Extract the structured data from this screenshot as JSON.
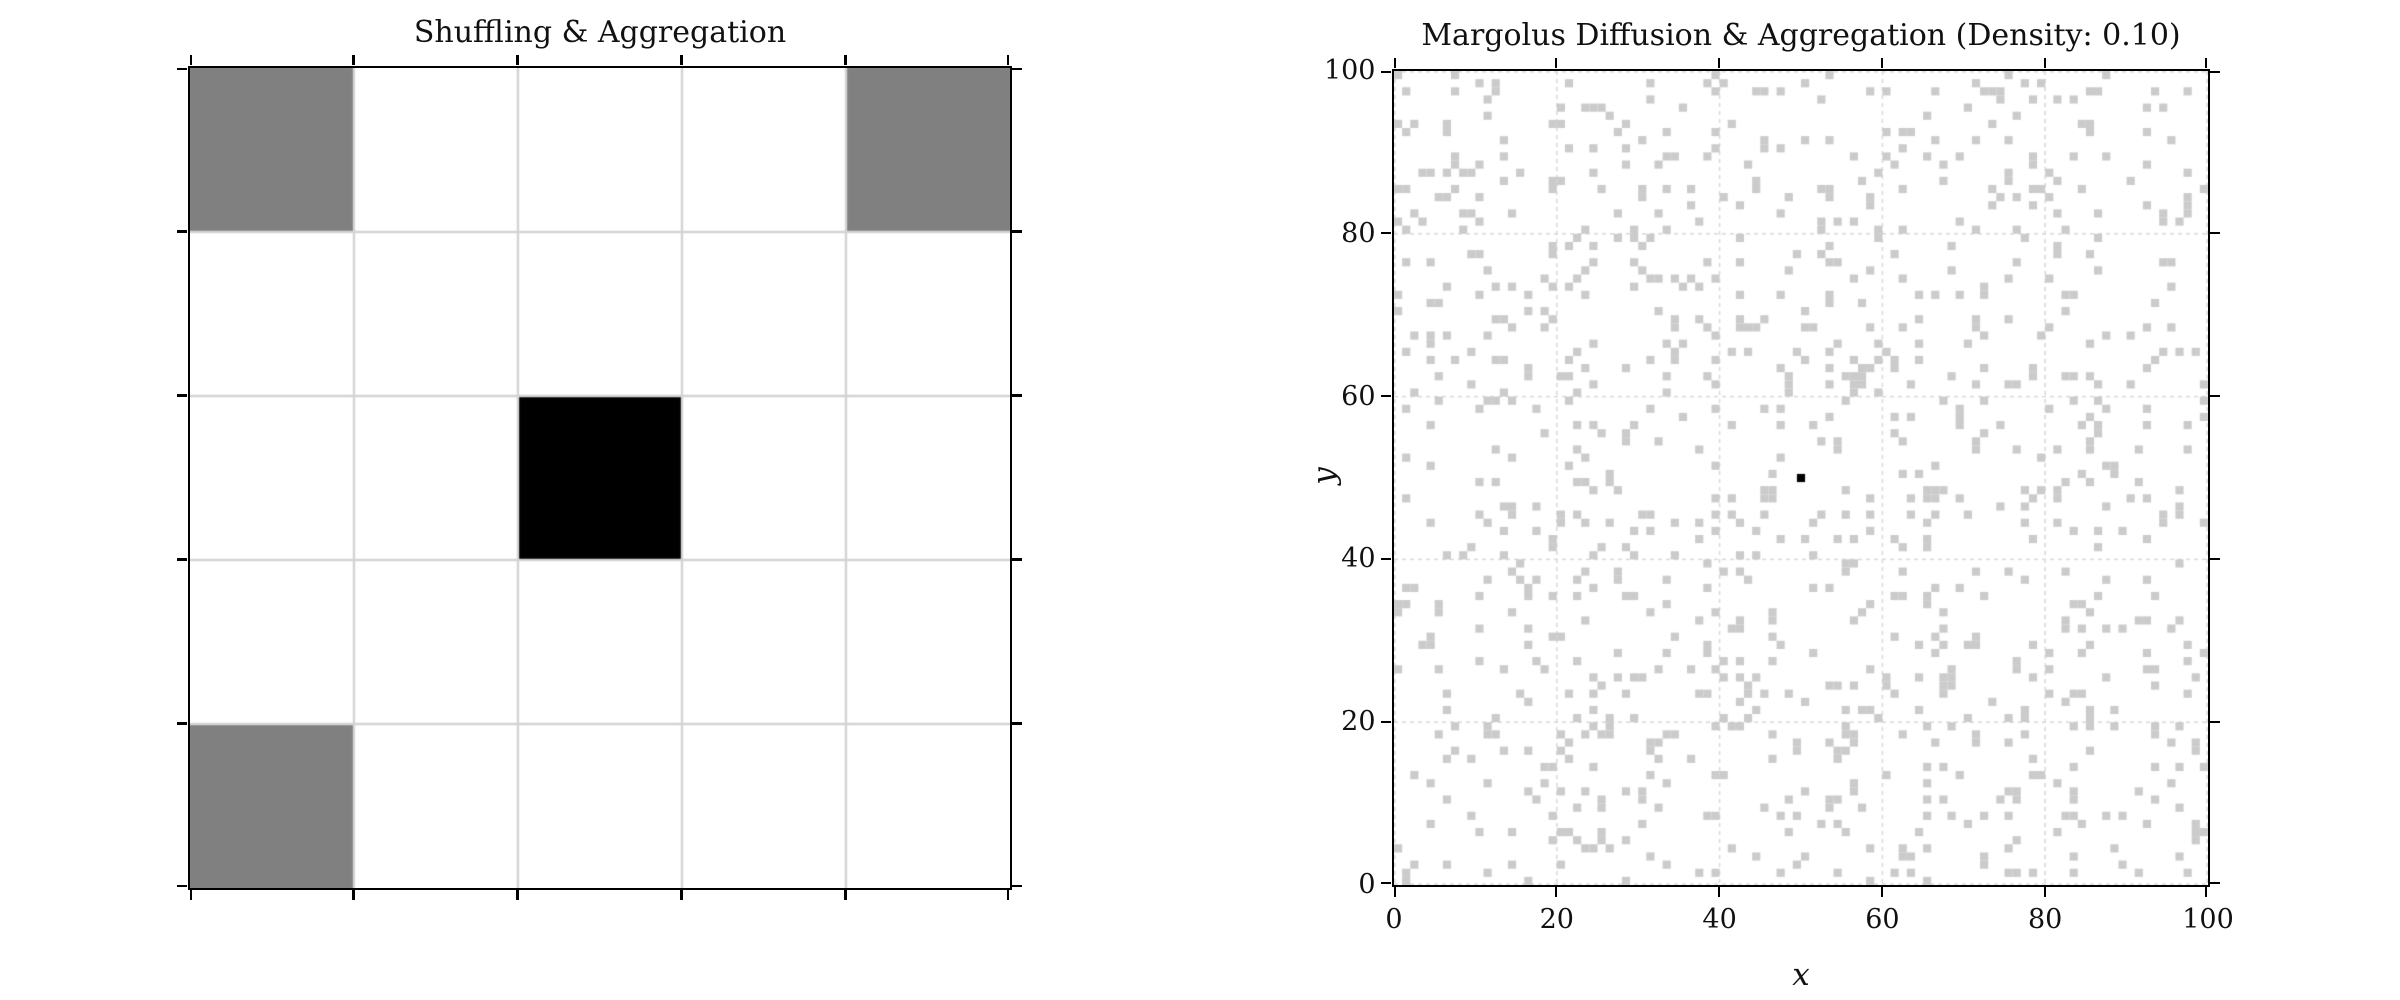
{
  "figure": {
    "background": "#ffffff"
  },
  "chart_data": [
    {
      "type": "heatmap",
      "title": "Shuffling & Aggregation",
      "grid_rows": 5,
      "grid_cols": 5,
      "cells": [
        {
          "row": 0,
          "col": 0,
          "state": "particle"
        },
        {
          "row": 0,
          "col": 4,
          "state": "particle"
        },
        {
          "row": 2,
          "col": 2,
          "state": "aggregate"
        },
        {
          "row": 4,
          "col": 0,
          "state": "particle"
        }
      ],
      "palette": {
        "particle": "#808080",
        "aggregate": "#000000",
        "empty": "#ffffff"
      },
      "gridline_color": "#d4d4d4",
      "gridline_width": 2.4,
      "tick_count_per_side": 6,
      "tick_labels_visible": false,
      "xlabel": "",
      "ylabel": "",
      "legend": "none"
    },
    {
      "type": "heatmap",
      "title": "Margolus Diffusion & Aggregation (Density: 0.10)",
      "xlabel": "x",
      "ylabel": "y",
      "grid_size": 100,
      "xlim": [
        0,
        100
      ],
      "ylim": [
        0,
        100
      ],
      "xticks": [
        "0",
        "20",
        "40",
        "60",
        "80",
        "100"
      ],
      "yticks": [
        "0",
        "20",
        "40",
        "60",
        "80",
        "100"
      ],
      "density": 0.1,
      "particle_color": "#cbcbcb",
      "aggregate_cells": [
        [
          50,
          50
        ]
      ],
      "aggregate_color": "#000000",
      "grid_style": {
        "color": "#d9d9d9",
        "dash": [
          4,
          4
        ],
        "width": 1.5,
        "on": true
      },
      "legend": "none",
      "render_seed": 987654321
    }
  ]
}
